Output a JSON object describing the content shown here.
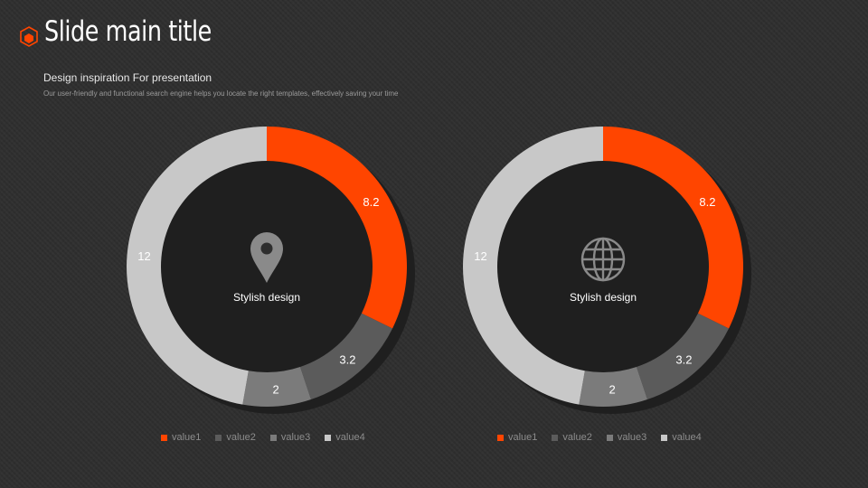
{
  "header": {
    "title": "Slide main title",
    "subtitle": "Design inspiration For presentation",
    "description": "Our user-friendly and functional search engine helps you locate the right templates, effectively saving your time"
  },
  "colors": {
    "accent": "#ff4500",
    "value2": "#5b5b5b",
    "value3": "#7b7b7b",
    "value4": "#c8c8c8",
    "background": "#2e2e2e"
  },
  "chart_data": [
    {
      "type": "pie",
      "style": "donut",
      "center_icon": "location-pin-icon",
      "center_label": "Stylish design",
      "categories": [
        "value1",
        "value2",
        "value3",
        "value4"
      ],
      "values": [
        8.2,
        3.2,
        2,
        12
      ],
      "colors": [
        "#ff4500",
        "#5b5b5b",
        "#7b7b7b",
        "#c8c8c8"
      ],
      "legend_position": "bottom"
    },
    {
      "type": "pie",
      "style": "donut",
      "center_icon": "globe-icon",
      "center_label": "Stylish design",
      "categories": [
        "value1",
        "value2",
        "value3",
        "value4"
      ],
      "values": [
        8.2,
        3.2,
        2,
        12
      ],
      "colors": [
        "#ff4500",
        "#5b5b5b",
        "#7b7b7b",
        "#c8c8c8"
      ],
      "legend_position": "bottom"
    }
  ]
}
